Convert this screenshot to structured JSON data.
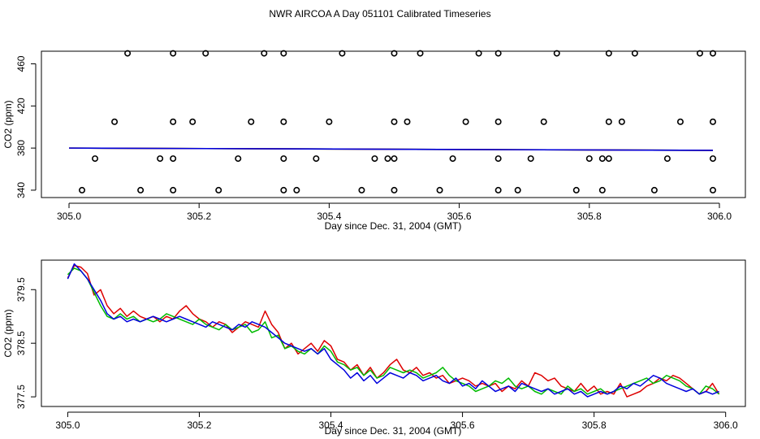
{
  "figure": {
    "title": "NWR AIRCOA A  Day 051101  Calibrated Timeseries"
  },
  "colors": {
    "red": "#dd0000",
    "green": "#00bb00",
    "blue": "#0000dd",
    "axis": "#000000",
    "markers": "#000000"
  },
  "chart_data": [
    {
      "type": "scatter",
      "title": "",
      "xlabel": "Day since Dec. 31, 2004 (GMT)",
      "ylabel": "CO2 (ppm)",
      "xlim": [
        305.0,
        306.0
      ],
      "ylim": [
        333,
        472
      ],
      "xticks": [
        305.0,
        305.2,
        305.4,
        305.6,
        305.8,
        306.0
      ],
      "xtick_labels": [
        "305.0",
        "305.2",
        "305.4",
        "305.6",
        "305.8",
        "306.0"
      ],
      "yticks": [
        340,
        380,
        420,
        460
      ],
      "ytick_labels": [
        "340",
        "380",
        "420",
        "460"
      ],
      "grid": false,
      "markers": {
        "name": "",
        "points": [
          [
            305.09,
            470
          ],
          [
            305.16,
            470
          ],
          [
            305.21,
            470
          ],
          [
            305.3,
            470
          ],
          [
            305.33,
            470
          ],
          [
            305.42,
            470
          ],
          [
            305.5,
            470
          ],
          [
            305.54,
            470
          ],
          [
            305.63,
            470
          ],
          [
            305.66,
            470
          ],
          [
            305.75,
            470
          ],
          [
            305.83,
            470
          ],
          [
            305.87,
            470
          ],
          [
            305.97,
            470
          ],
          [
            305.99,
            470
          ],
          [
            305.07,
            405
          ],
          [
            305.16,
            405
          ],
          [
            305.19,
            405
          ],
          [
            305.28,
            405
          ],
          [
            305.33,
            405
          ],
          [
            305.4,
            405
          ],
          [
            305.5,
            405
          ],
          [
            305.52,
            405
          ],
          [
            305.61,
            405
          ],
          [
            305.66,
            405
          ],
          [
            305.73,
            405
          ],
          [
            305.83,
            405
          ],
          [
            305.85,
            405
          ],
          [
            305.94,
            405
          ],
          [
            305.99,
            405
          ],
          [
            305.04,
            370
          ],
          [
            305.14,
            370
          ],
          [
            305.16,
            370
          ],
          [
            305.26,
            370
          ],
          [
            305.33,
            370
          ],
          [
            305.38,
            370
          ],
          [
            305.47,
            370
          ],
          [
            305.49,
            370
          ],
          [
            305.5,
            370
          ],
          [
            305.59,
            370
          ],
          [
            305.66,
            370
          ],
          [
            305.71,
            370
          ],
          [
            305.8,
            370
          ],
          [
            305.82,
            370
          ],
          [
            305.83,
            370
          ],
          [
            305.92,
            370
          ],
          [
            305.99,
            370
          ],
          [
            305.02,
            340
          ],
          [
            305.11,
            340
          ],
          [
            305.16,
            340
          ],
          [
            305.23,
            340
          ],
          [
            305.33,
            340
          ],
          [
            305.35,
            340
          ],
          [
            305.45,
            340
          ],
          [
            305.5,
            340
          ],
          [
            305.57,
            340
          ],
          [
            305.66,
            340
          ],
          [
            305.69,
            340
          ],
          [
            305.78,
            340
          ],
          [
            305.82,
            340
          ],
          [
            305.9,
            340
          ],
          [
            305.99,
            340
          ]
        ]
      },
      "series": [
        {
          "color": "green",
          "x_start": 305.0,
          "x_end": 305.99,
          "y_start": 380.0,
          "y_end": 377.8
        },
        {
          "color": "red",
          "x_start": 305.0,
          "x_end": 305.99,
          "y_start": 380.0,
          "y_end": 377.8
        },
        {
          "color": "blue",
          "x_start": 305.0,
          "x_end": 305.99,
          "y_start": 380.0,
          "y_end": 377.8
        }
      ]
    },
    {
      "type": "line",
      "title": "",
      "xlabel": "Day since Dec. 31, 2004 (GMT)",
      "ylabel": "CO2 (ppm)",
      "xlim": [
        304.96,
        306.03
      ],
      "ylim": [
        377.32,
        380.05
      ],
      "xticks": [
        305.0,
        305.2,
        305.4,
        305.6,
        305.8,
        306.0
      ],
      "xtick_labels": [
        "305.0",
        "305.2",
        "305.4",
        "305.6",
        "305.8",
        "306.0"
      ],
      "yticks": [
        377.5,
        378.5,
        379.5
      ],
      "ytick_labels": [
        "377.5",
        "378.5",
        "379.5"
      ],
      "grid": false,
      "series": [
        {
          "color": "red",
          "x_start": 305.0,
          "x_step": 0.01,
          "values": [
            379.72,
            379.95,
            379.92,
            379.8,
            379.4,
            379.5,
            379.2,
            379.05,
            379.15,
            379.0,
            379.1,
            379.0,
            378.95,
            379.0,
            378.9,
            379.0,
            378.95,
            379.1,
            379.2,
            379.05,
            378.95,
            378.9,
            378.8,
            378.9,
            378.85,
            378.7,
            378.8,
            378.9,
            378.85,
            378.8,
            379.1,
            378.85,
            378.7,
            378.4,
            378.5,
            378.3,
            378.4,
            378.5,
            378.35,
            378.55,
            378.45,
            378.2,
            378.15,
            378.0,
            378.1,
            377.9,
            378.05,
            377.85,
            377.95,
            378.1,
            378.2,
            378.0,
            377.95,
            378.05,
            377.9,
            377.95,
            377.85,
            377.9,
            377.75,
            377.8,
            377.85,
            377.8,
            377.7,
            377.75,
            377.7,
            377.75,
            377.6,
            377.7,
            377.65,
            377.8,
            377.7,
            377.95,
            377.9,
            377.8,
            377.85,
            377.7,
            377.65,
            377.6,
            377.75,
            377.6,
            377.7,
            377.55,
            377.6,
            377.55,
            377.75,
            377.5,
            377.55,
            377.6,
            377.7,
            377.75,
            377.85,
            377.8,
            377.9,
            377.85,
            377.75,
            377.65,
            377.55,
            377.6,
            377.75,
            377.55
          ]
        },
        {
          "color": "green",
          "x_start": 305.0,
          "x_step": 0.01,
          "values": [
            379.78,
            379.9,
            379.85,
            379.7,
            379.45,
            379.2,
            379.0,
            378.95,
            379.05,
            378.95,
            379.0,
            378.9,
            378.95,
            378.9,
            378.95,
            379.05,
            379.0,
            378.95,
            378.9,
            378.85,
            378.95,
            378.85,
            378.8,
            378.75,
            378.85,
            378.75,
            378.8,
            378.85,
            378.7,
            378.75,
            378.9,
            378.6,
            378.65,
            378.4,
            378.45,
            378.35,
            378.3,
            378.4,
            378.3,
            378.45,
            378.35,
            378.15,
            378.1,
            378.0,
            378.05,
            377.9,
            378.0,
            377.85,
            377.9,
            378.05,
            378.0,
            377.95,
            378.0,
            377.95,
            377.85,
            377.9,
            377.95,
            378.05,
            377.9,
            377.8,
            377.75,
            377.7,
            377.6,
            377.65,
            377.7,
            377.8,
            377.75,
            377.85,
            377.7,
            377.65,
            377.7,
            377.6,
            377.55,
            377.65,
            377.6,
            377.55,
            377.7,
            377.6,
            377.65,
            377.55,
            377.6,
            377.65,
            377.55,
            377.6,
            377.65,
            377.7,
            377.75,
            377.8,
            377.85,
            377.75,
            377.8,
            377.9,
            377.85,
            377.8,
            377.7,
            377.65,
            377.55,
            377.7,
            377.65,
            377.55
          ]
        },
        {
          "color": "blue",
          "x_start": 305.0,
          "x_step": 0.01,
          "values": [
            379.7,
            379.98,
            379.85,
            379.7,
            379.5,
            379.3,
            379.05,
            378.95,
            379.0,
            378.9,
            378.95,
            378.9,
            378.95,
            379.0,
            378.95,
            378.9,
            378.95,
            379.0,
            378.95,
            378.9,
            378.85,
            378.8,
            378.9,
            378.85,
            378.8,
            378.75,
            378.85,
            378.8,
            378.9,
            378.85,
            378.8,
            378.7,
            378.6,
            378.5,
            378.45,
            378.4,
            378.35,
            378.4,
            378.3,
            378.4,
            378.2,
            378.1,
            378.0,
            377.85,
            377.95,
            377.8,
            377.9,
            377.75,
            377.85,
            377.95,
            377.9,
            377.85,
            377.95,
            377.9,
            377.8,
            377.85,
            377.9,
            377.8,
            377.75,
            377.85,
            377.7,
            377.75,
            377.65,
            377.8,
            377.7,
            377.6,
            377.65,
            377.7,
            377.6,
            377.75,
            377.7,
            377.65,
            377.6,
            377.65,
            377.55,
            377.6,
            377.65,
            377.55,
            377.6,
            377.5,
            377.55,
            377.6,
            377.55,
            377.6,
            377.7,
            377.65,
            377.75,
            377.7,
            377.8,
            377.9,
            377.85,
            377.75,
            377.7,
            377.65,
            377.6,
            377.65,
            377.55,
            377.6,
            377.55,
            377.6
          ]
        }
      ]
    }
  ]
}
